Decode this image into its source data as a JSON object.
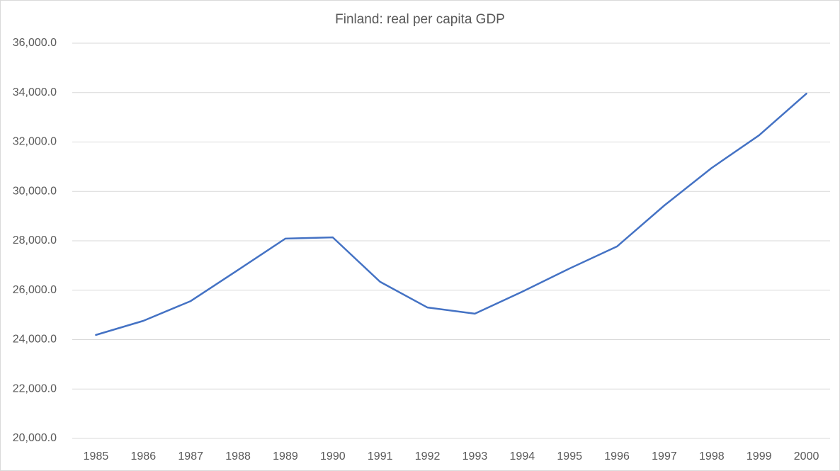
{
  "chart_data": {
    "type": "line",
    "title": "Finland: real per capita GDP",
    "categories": [
      "1985",
      "1986",
      "1987",
      "1988",
      "1989",
      "1990",
      "1991",
      "1992",
      "1993",
      "1994",
      "1995",
      "1996",
      "1997",
      "1998",
      "1999",
      "2000"
    ],
    "values": [
      24190,
      24760,
      25560,
      26820,
      28090,
      28140,
      26340,
      25300,
      25050,
      25940,
      26880,
      27770,
      29430,
      30950,
      32270,
      33960
    ],
    "color": "#4472c4",
    "ylim": [
      20000,
      36000
    ],
    "yticks": [
      {
        "value": 20000,
        "label": "20,000.0"
      },
      {
        "value": 22000,
        "label": "22,000.0"
      },
      {
        "value": 24000,
        "label": "24,000.0"
      },
      {
        "value": 26000,
        "label": "26,000.0"
      },
      {
        "value": 28000,
        "label": "28,000.0"
      },
      {
        "value": 30000,
        "label": "30,000.0"
      },
      {
        "value": 32000,
        "label": "32,000.0"
      },
      {
        "value": 34000,
        "label": "34,000.0"
      },
      {
        "value": 36000,
        "label": "36,000.0"
      }
    ],
    "grid": true
  }
}
